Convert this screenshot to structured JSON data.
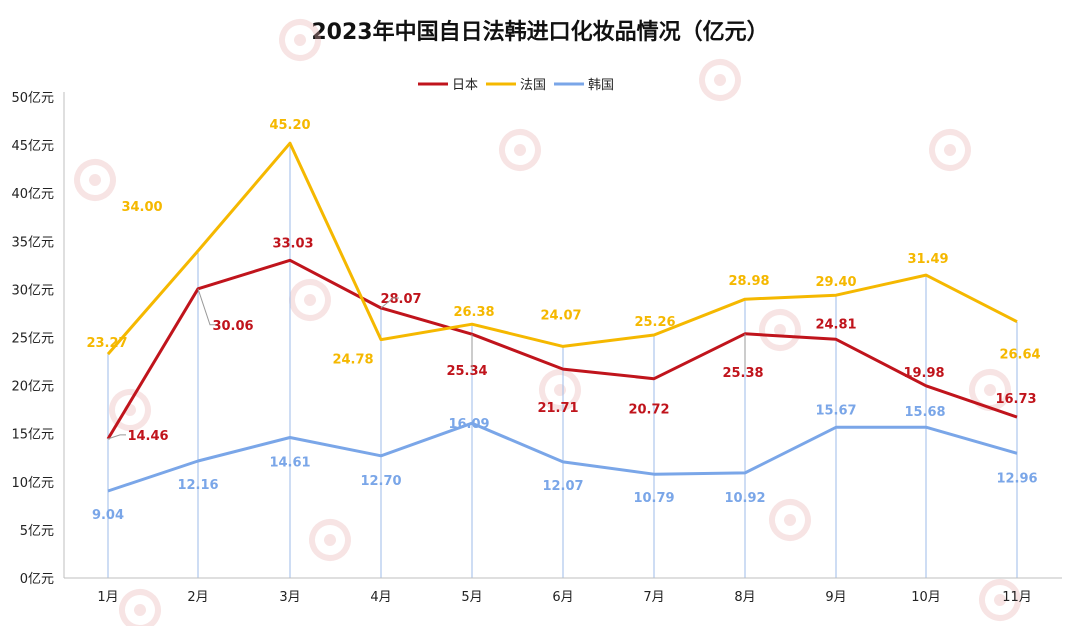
{
  "chart_data": {
    "type": "line",
    "title": "2023年中国自日法韩进口化妆品情况（亿元）",
    "categories": [
      "1月",
      "2月",
      "3月",
      "4月",
      "5月",
      "6月",
      "7月",
      "8月",
      "9月",
      "10月",
      "11月"
    ],
    "y_tick_labels": [
      "0亿元",
      "5亿元",
      "10亿元",
      "15亿元",
      "20亿元",
      "25亿元",
      "30亿元",
      "35亿元",
      "40亿元",
      "45亿元",
      "50亿元"
    ],
    "ylim": [
      0,
      50
    ],
    "ytick_step": 5,
    "legend_position": "top-center",
    "grid": "vertical drop lines",
    "series": [
      {
        "name": "日本",
        "color": "#c0141c",
        "values": [
          14.46,
          30.06,
          33.03,
          28.07,
          25.34,
          21.71,
          20.72,
          25.38,
          24.81,
          19.98,
          16.73
        ],
        "labels": [
          "14.46",
          "30.06",
          "33.03",
          "28.07",
          "25.34",
          "21.71",
          "20.72",
          "25.38",
          "24.81",
          "19.98",
          "16.73"
        ]
      },
      {
        "name": "法国",
        "color": "#f5b800",
        "values": [
          23.27,
          34.0,
          45.2,
          24.78,
          26.38,
          24.07,
          25.26,
          28.98,
          29.4,
          31.49,
          26.64
        ],
        "labels": [
          "23.27",
          "34.00",
          "45.20",
          "24.78",
          "26.38",
          "24.07",
          "25.26",
          "28.98",
          "29.40",
          "31.49",
          "26.64"
        ]
      },
      {
        "name": "韩国",
        "color": "#7aa6e8",
        "values": [
          9.04,
          12.16,
          14.61,
          12.7,
          16.09,
          12.07,
          10.79,
          10.92,
          15.67,
          15.68,
          12.96
        ],
        "labels": [
          "9.04",
          "12.16",
          "14.61",
          "12.70",
          "16.09",
          "12.07",
          "10.79",
          "10.92",
          "15.67",
          "15.68",
          "12.96"
        ]
      }
    ]
  }
}
